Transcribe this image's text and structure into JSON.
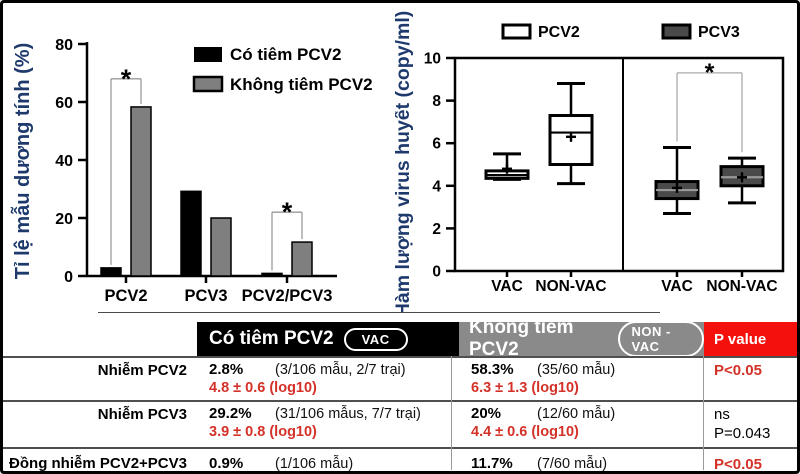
{
  "chart_data": [
    {
      "type": "bar",
      "ylabel": "Tỉ lệ mẫu dương tính (%)",
      "ylabel_color": "#1e3a6d",
      "ylim": [
        0,
        80
      ],
      "yticks": [
        0,
        20,
        40,
        60,
        80
      ],
      "categories": [
        "PCV2",
        "PCV3",
        "PCV2/PCV3"
      ],
      "series": [
        {
          "name": "Có tiêm PCV2",
          "color": "#000000",
          "values": [
            2.8,
            29.2,
            0.9
          ]
        },
        {
          "name": "Không tiêm PCV2",
          "color": "#7f7f7f",
          "values": [
            58.3,
            20,
            11.7
          ]
        }
      ],
      "significance": [
        {
          "category_index": 0,
          "label": "*",
          "y": 68
        },
        {
          "category_index": 2,
          "label": "*",
          "y": 22
        }
      ],
      "legend_position": "top-right",
      "grid": false
    },
    {
      "type": "box",
      "ylabel": "Hàm lượng virus huyết (copy/ml)",
      "ylabel_color": "#1e3a6d",
      "ylim": [
        0,
        10
      ],
      "yticks": [
        0,
        2,
        4,
        6,
        8,
        10
      ],
      "legend": [
        {
          "name": "PCV2",
          "fill": "#ffffff"
        },
        {
          "name": "PCV3",
          "fill": "#4a4a4a"
        }
      ],
      "panels": [
        {
          "virus": "PCV2",
          "fill": "#ffffff",
          "boxes": [
            {
              "group": "VAC",
              "whislo": 4.3,
              "q1": 4.35,
              "med": 4.5,
              "q3": 4.7,
              "whishi": 5.5,
              "mean": 4.8
            },
            {
              "group": "NON-VAC",
              "whislo": 4.1,
              "q1": 5.0,
              "med": 6.5,
              "q3": 7.3,
              "whishi": 8.8,
              "mean": 6.3
            }
          ]
        },
        {
          "virus": "PCV3",
          "fill": "#4a4a4a",
          "boxes": [
            {
              "group": "VAC",
              "whislo": 2.7,
              "q1": 3.4,
              "med": 3.8,
              "q3": 4.2,
              "whishi": 5.8,
              "mean": 3.9
            },
            {
              "group": "NON-VAC",
              "whislo": 3.2,
              "q1": 4.0,
              "med": 4.4,
              "q3": 4.9,
              "whishi": 5.3,
              "mean": 4.4
            }
          ],
          "significance": {
            "label": "*",
            "y": 9.3
          }
        }
      ],
      "grid": false
    }
  ],
  "table": {
    "header": {
      "vac_label": "Có tiêm PCV2",
      "vac_badge": "VAC",
      "nonvac_label": "Không tiêm PCV2",
      "nonvac_badge": "NON -VAC",
      "pvalue_label": "P value"
    },
    "rows": [
      {
        "label": "Nhiễm PCV2",
        "vac_pct": "2.8%",
        "vac_detail": "(3/106 mẫu, 2/7 trại)",
        "vac_log": "4.8 ± 0.6 (log10)",
        "nonvac_pct": "58.3%",
        "nonvac_detail": "(35/60 mẫu)",
        "nonvac_log": "6.3 ± 1.3 (log10)",
        "p_lines": [
          {
            "text": "P<0.05",
            "red": true
          }
        ]
      },
      {
        "label": "Nhiễm PCV3",
        "vac_pct": "29.2%",
        "vac_detail": "(31/106 mẫus, 7/7 trại)",
        "vac_log": "3.9 ± 0.8 (log10)",
        "nonvac_pct": "20%",
        "nonvac_detail": "(12/60 mẫu)",
        "nonvac_log": "4.4 ± 0.6 (log10)",
        "p_lines": [
          {
            "text": "ns",
            "red": false
          },
          {
            "text": "P=0.043",
            "red": false
          }
        ]
      },
      {
        "label": "Đồng nhiễm PCV2+PCV3",
        "vac_pct": "0.9%",
        "vac_detail": "(1/106 mẫu)",
        "vac_log": "",
        "nonvac_pct": "11.7%",
        "nonvac_detail": "(7/60 mẫu)",
        "nonvac_log": "",
        "p_lines": [
          {
            "text": "P<0.05",
            "red": true
          }
        ]
      }
    ],
    "colors": {
      "header_black": "#000000",
      "header_gray": "#8a8a8a",
      "header_red": "#f3100d",
      "red_text": "#d43128",
      "axis_label_blue": "#1e3a6d"
    }
  }
}
